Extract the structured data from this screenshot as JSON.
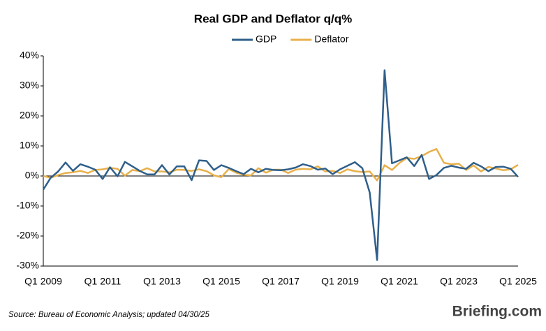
{
  "chart_data": {
    "type": "line",
    "title": "Real GDP and Deflator q/q%",
    "categories": [
      "Q1 2009",
      null,
      null,
      null,
      null,
      null,
      null,
      null,
      "Q1 2011",
      null,
      null,
      null,
      null,
      null,
      null,
      null,
      "Q1 2013",
      null,
      null,
      null,
      null,
      null,
      null,
      null,
      "Q1 2015",
      null,
      null,
      null,
      null,
      null,
      null,
      null,
      "Q1 2017",
      null,
      null,
      null,
      null,
      null,
      null,
      null,
      "Q1 2019",
      null,
      null,
      null,
      null,
      null,
      null,
      null,
      "Q1 2021",
      null,
      null,
      null,
      null,
      null,
      null,
      null,
      "Q1 2023",
      null,
      null,
      null,
      null,
      null,
      null,
      null,
      "Q1 2025"
    ],
    "series": [
      {
        "name": "GDP",
        "color": "#2f5f8a",
        "values": [
          -4.5,
          -0.6,
          1.5,
          4.5,
          1.7,
          3.9,
          3.1,
          2.1,
          -1.0,
          2.9,
          -0.1,
          4.7,
          3.2,
          1.7,
          0.5,
          0.5,
          3.6,
          0.5,
          3.2,
          3.2,
          -1.4,
          5.2,
          5.0,
          2.0,
          3.6,
          2.7,
          1.6,
          0.6,
          2.4,
          1.2,
          2.4,
          2.0,
          1.9,
          2.2,
          2.8,
          3.9,
          3.3,
          2.1,
          2.5,
          0.6,
          2.2,
          3.4,
          4.6,
          2.6,
          -5.5,
          -28.0,
          35.2,
          4.2,
          5.2,
          6.2,
          3.3,
          7.0,
          -1.0,
          0.3,
          2.7,
          3.4,
          2.8,
          2.4,
          4.4,
          3.2,
          1.6,
          3.0,
          3.1,
          2.4,
          -0.3
        ]
      },
      {
        "name": "Deflator",
        "color": "#e8b04b",
        "values": [
          0.0,
          -0.6,
          0.3,
          1.0,
          1.2,
          1.7,
          1.0,
          2.0,
          2.2,
          2.7,
          2.4,
          0.1,
          2.0,
          1.6,
          2.6,
          1.5,
          1.5,
          1.2,
          2.1,
          2.0,
          1.7,
          2.2,
          1.6,
          0.2,
          -0.4,
          2.3,
          1.1,
          0.4,
          0.2,
          2.6,
          1.1,
          2.1,
          2.1,
          1.0,
          2.1,
          2.4,
          2.2,
          3.2,
          1.5,
          1.7,
          1.0,
          2.2,
          1.6,
          1.3,
          1.5,
          -1.5,
          3.6,
          2.0,
          4.3,
          6.0,
          5.7,
          6.6,
          8.0,
          9.0,
          4.4,
          3.9,
          4.1,
          2.0,
          3.5,
          1.5,
          3.0,
          2.5,
          1.9,
          2.2,
          3.7
        ]
      }
    ],
    "ylim": [
      -30,
      40
    ],
    "yticks": [
      {
        "value": 40,
        "label": "40%"
      },
      {
        "value": 30,
        "label": "30%"
      },
      {
        "value": 20,
        "label": "20%"
      },
      {
        "value": 10,
        "label": "10%"
      },
      {
        "value": 0,
        "label": "0%"
      },
      {
        "value": -10,
        "label": "-10%"
      },
      {
        "value": -20,
        "label": "-20%"
      },
      {
        "value": -30,
        "label": "-30%"
      }
    ],
    "source": "Source: Bureau of Economic Analysis; updated 04/30/25",
    "brand": "Briefing.com"
  }
}
